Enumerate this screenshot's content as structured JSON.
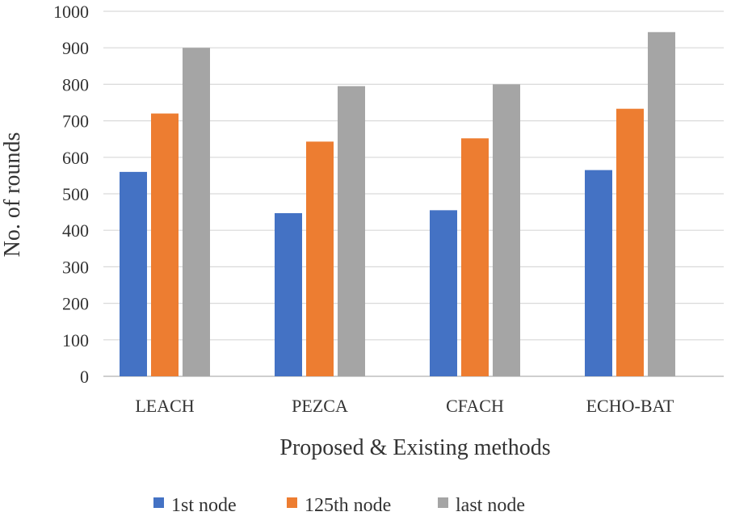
{
  "chart_data": {
    "type": "bar",
    "title": "",
    "xlabel": "Proposed & Existing methods",
    "ylabel": "No. of rounds",
    "categories": [
      "LEACH",
      "PEZCA",
      "CFACH",
      "ECHO-BAT"
    ],
    "series": [
      {
        "name": "1st node",
        "color": "#4472c4",
        "values": [
          560,
          447,
          455,
          565
        ]
      },
      {
        "name": "125th node",
        "color": "#ed7d31",
        "values": [
          720,
          643,
          652,
          733
        ]
      },
      {
        "name": "last node",
        "color": "#a5a5a5",
        "values": [
          900,
          795,
          800,
          943
        ]
      }
    ],
    "ylim": [
      0,
      1000
    ],
    "yticks": [
      0,
      100,
      200,
      300,
      400,
      500,
      600,
      700,
      800,
      900,
      1000
    ],
    "grid": true,
    "legend": "bottom"
  }
}
